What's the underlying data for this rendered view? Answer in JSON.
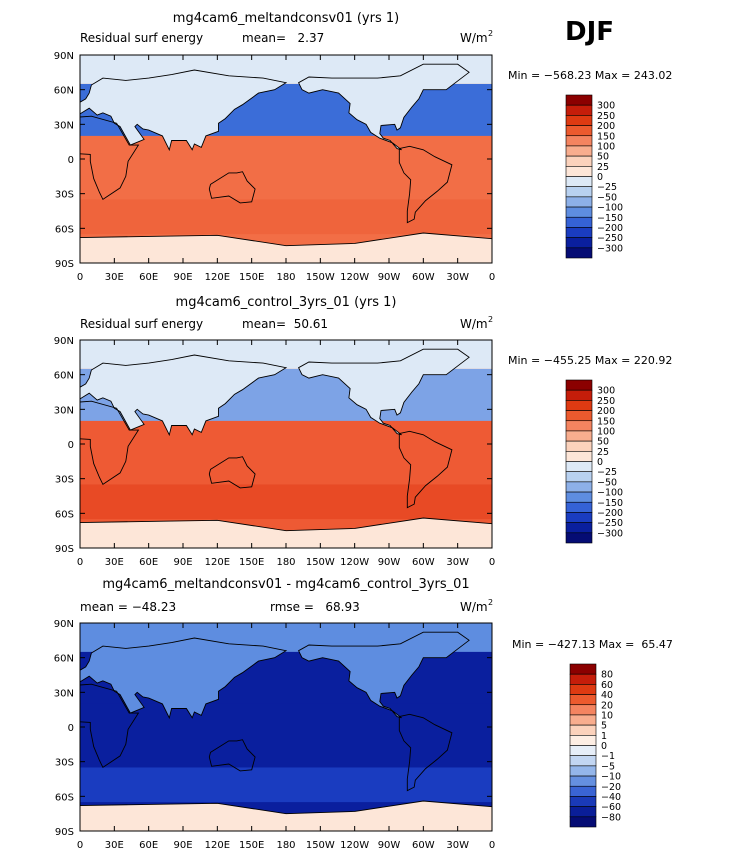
{
  "season": "DJF",
  "chart_data": [
    {
      "type": "heatmap",
      "title": "mg4cam6_meltandconsv01 (yrs 1)",
      "left_label": "Residual surf energy",
      "center_label": "mean=   2.37",
      "units_label": "W/m",
      "units_exp": "2",
      "stats": "Min = −568.23 Max = 243.02",
      "y_ticks": [
        "90N",
        "60N",
        "30N",
        "0",
        "30S",
        "60S",
        "90S"
      ],
      "x_ticks": [
        "0",
        "30E",
        "60E",
        "90E",
        "120E",
        "150E",
        "180",
        "150W",
        "120W",
        "90W",
        "60W",
        "30W",
        "0"
      ],
      "colorbar_levels": [
        "300",
        "250",
        "200",
        "150",
        "100",
        "50",
        "25",
        "0",
        "−25",
        "−50",
        "−100",
        "−150",
        "−200",
        "−250",
        "−300"
      ],
      "colorbar_colors": [
        "#8b0000",
        "#c51d0a",
        "#de3a12",
        "#ec5a2e",
        "#f48460",
        "#f8ad8e",
        "#fbd2bc",
        "#fde6d8",
        "#dde9f6",
        "#b8d1f0",
        "#8db0e8",
        "#5e8de0",
        "#3562d6",
        "#1a3cc0",
        "#0a1f9e",
        "#050c74"
      ],
      "fields": {
        "tropics": "#f26e46",
        "southern_ocean": "#ef643c",
        "land_north": "#dde9f6",
        "north_ocean": "#3b6dd8",
        "antarctica": "#fde6d8"
      }
    },
    {
      "type": "heatmap",
      "title": "mg4cam6_control_3yrs_01 (yrs 1)",
      "left_label": "Residual surf energy",
      "center_label": "mean=  50.61",
      "units_label": "W/m",
      "units_exp": "2",
      "stats": "Min = −455.25 Max = 220.92",
      "y_ticks": [
        "90N",
        "60N",
        "30N",
        "0",
        "30S",
        "60S",
        "90S"
      ],
      "x_ticks": [
        "0",
        "30E",
        "60E",
        "90E",
        "120E",
        "150E",
        "180",
        "150W",
        "120W",
        "90W",
        "60W",
        "30W",
        "0"
      ],
      "colorbar_levels": [
        "300",
        "250",
        "200",
        "150",
        "100",
        "50",
        "25",
        "0",
        "−25",
        "−50",
        "−100",
        "−150",
        "−200",
        "−250",
        "−300"
      ],
      "colorbar_colors": [
        "#8b0000",
        "#c51d0a",
        "#de3a12",
        "#ec5a2e",
        "#f48460",
        "#f8ad8e",
        "#fbd2bc",
        "#fde6d8",
        "#dde9f6",
        "#b8d1f0",
        "#8db0e8",
        "#5e8de0",
        "#3562d6",
        "#1a3cc0",
        "#0a1f9e",
        "#050c74"
      ],
      "fields": {
        "tropics": "#ee5a34",
        "southern_ocean": "#e84a25",
        "land_north": "#dde9f6",
        "north_ocean": "#7da3e6",
        "antarctica": "#fde6d8"
      }
    },
    {
      "type": "heatmap",
      "title": "mg4cam6_meltandconsv01 - mg4cam6_control_3yrs_01",
      "left_label": "mean = −48.23",
      "center_label": "rmse =   68.93",
      "units_label": "W/m",
      "units_exp": "2",
      "stats": "Min = −427.13 Max =  65.47",
      "y_ticks": [
        "90N",
        "60N",
        "30N",
        "0",
        "30S",
        "60S",
        "90S"
      ],
      "x_ticks": [
        "0",
        "30E",
        "60E",
        "90E",
        "120E",
        "150E",
        "180",
        "150W",
        "120W",
        "90W",
        "60W",
        "30W",
        "0"
      ],
      "colorbar_levels": [
        "80",
        "60",
        "40",
        "20",
        "10",
        "5",
        "1",
        "0",
        "−1",
        "−5",
        "−10",
        "−20",
        "−40",
        "−60",
        "−80"
      ],
      "colorbar_colors": [
        "#8b0000",
        "#c51d0a",
        "#de3a12",
        "#ec5a2e",
        "#f48460",
        "#f8ad8e",
        "#fbd2bc",
        "#fdeee4",
        "#e6eef8",
        "#c2d6f2",
        "#94b6ea",
        "#6590e0",
        "#3a64d4",
        "#1a3ab8",
        "#0a1e98",
        "#050c74"
      ],
      "fields": {
        "tropics": "#0a1f9e",
        "southern_ocean": "#1a3cc0",
        "land_north": "#5e8de0",
        "north_ocean": "#0a1f9e",
        "antarctica": "#fde6d8"
      }
    }
  ]
}
